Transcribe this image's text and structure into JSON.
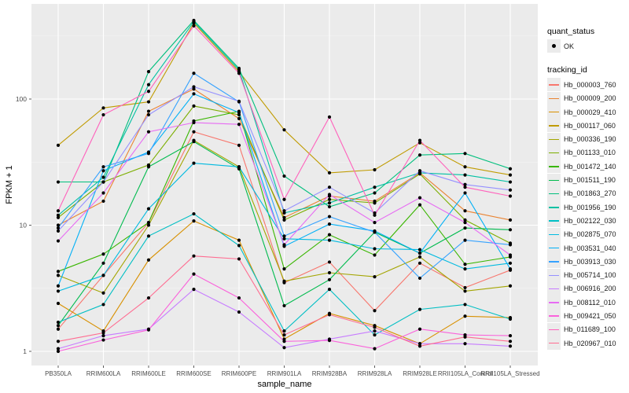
{
  "chart_data": {
    "type": "line",
    "title": "",
    "xlabel": "sample_name",
    "ylabel": "FPKM + 1",
    "yscale": "log10",
    "ylim": [
      0.8,
      560
    ],
    "yticks": [
      1,
      10,
      100
    ],
    "ytick_labels": [
      "1",
      "10",
      "100"
    ],
    "grid": true,
    "legend_position": "right",
    "categories": [
      "PB350LA",
      "RRIM600LA",
      "RRIM600LE",
      "RRIM600SE",
      "RRIM600PE",
      "RRIM901LA",
      "RRIM928BA",
      "RRIM928LA",
      "RRIM928LE",
      "RRII105LA_Control",
      "RRII105LA_Stressed"
    ],
    "point_legend": {
      "title": "quant_status",
      "entries": [
        "OK"
      ]
    },
    "line_legend_title": "tracking_id",
    "series": [
      {
        "name": "Hb_000003_760",
        "color": "#F8766D",
        "values": [
          1.5,
          4.0,
          10.5,
          55.0,
          43.0,
          3.5,
          5.1,
          2.1,
          5.0,
          3.2,
          4.4
        ]
      },
      {
        "name": "Hb_000009_200",
        "color": "#EA8331",
        "values": [
          10.0,
          15.5,
          80.0,
          120.0,
          70.0,
          11.5,
          17.0,
          15.5,
          26.0,
          13.0,
          11.0
        ]
      },
      {
        "name": "Hb_000029_410",
        "color": "#D89000",
        "values": [
          2.4,
          1.45,
          5.3,
          10.8,
          7.6,
          1.25,
          2.0,
          1.6,
          1.15,
          1.9,
          1.85
        ]
      },
      {
        "name": "Hb_000117_060",
        "color": "#C09B00",
        "values": [
          43.0,
          85.0,
          95.0,
          400.0,
          165.0,
          57.0,
          26.0,
          27.5,
          45.0,
          29.0,
          25.0
        ]
      },
      {
        "name": "Hb_000336_190",
        "color": "#A3A500",
        "values": [
          4.0,
          2.9,
          10.0,
          47.0,
          29.0,
          3.6,
          4.2,
          3.9,
          5.6,
          3.0,
          3.3
        ]
      },
      {
        "name": "Hb_001133_010",
        "color": "#7CAE00",
        "values": [
          11.5,
          22.0,
          30.0,
          88.0,
          75.0,
          11.0,
          16.0,
          15.0,
          25.5,
          11.0,
          7.2
        ]
      },
      {
        "name": "Hb_001472_140",
        "color": "#39B600",
        "values": [
          4.3,
          5.9,
          10.5,
          67.0,
          80.0,
          4.5,
          8.4,
          5.8,
          14.5,
          4.9,
          5.6
        ]
      },
      {
        "name": "Hb_001511_190",
        "color": "#00BB4E",
        "values": [
          1.6,
          5.0,
          29.0,
          46.0,
          28.0,
          2.3,
          3.7,
          8.8,
          6.0,
          9.5,
          9.2
        ]
      },
      {
        "name": "Hb_001863_270",
        "color": "#00BF7D",
        "values": [
          22.0,
          22.0,
          165.0,
          420.0,
          175.0,
          24.5,
          14.0,
          18.0,
          36.0,
          37.0,
          28.0
        ]
      },
      {
        "name": "Hb_001956_190",
        "color": "#00C1A3",
        "values": [
          12.0,
          24.0,
          130.0,
          410.0,
          170.0,
          12.5,
          15.0,
          20.0,
          26.0,
          25.0,
          22.0
        ]
      },
      {
        "name": "Hb_002122_030",
        "color": "#00BFC4",
        "values": [
          1.7,
          2.35,
          8.2,
          12.3,
          6.9,
          1.45,
          3.1,
          1.35,
          2.15,
          2.35,
          1.8
        ]
      },
      {
        "name": "Hb_002875_070",
        "color": "#00BAE0",
        "values": [
          3.0,
          4.0,
          13.5,
          31.0,
          29.0,
          7.8,
          7.6,
          6.5,
          6.4,
          4.5,
          5.0
        ]
      },
      {
        "name": "Hb_003531_040",
        "color": "#00B0F6",
        "values": [
          3.3,
          27.0,
          38.0,
          110.0,
          78.0,
          6.8,
          10.2,
          9.0,
          6.0,
          18.0,
          4.5
        ]
      },
      {
        "name": "Hb_003913_030",
        "color": "#35A2FF",
        "values": [
          9.5,
          29.0,
          37.0,
          160.0,
          95.0,
          8.2,
          11.7,
          8.8,
          3.8,
          7.6,
          7.0
        ]
      },
      {
        "name": "Hb_005714_100",
        "color": "#9590FF",
        "values": [
          9.0,
          22.0,
          75.0,
          125.0,
          96.0,
          13.0,
          20.0,
          12.5,
          27.0,
          21.0,
          19.0
        ]
      },
      {
        "name": "Hb_006916_200",
        "color": "#C77CFF",
        "values": [
          1.05,
          1.33,
          1.5,
          3.1,
          2.05,
          1.07,
          1.25,
          1.45,
          1.15,
          1.15,
          1.1
        ]
      },
      {
        "name": "Hb_008112_010",
        "color": "#E76BF3",
        "values": [
          7.5,
          18.0,
          55.0,
          65.0,
          63.0,
          7.0,
          17.5,
          10.5,
          16.5,
          10.5,
          5.8
        ]
      },
      {
        "name": "Hb_009421_050",
        "color": "#FA62DB",
        "values": [
          1.0,
          1.23,
          1.48,
          4.1,
          2.65,
          1.2,
          1.22,
          1.05,
          1.5,
          1.35,
          1.33
        ]
      },
      {
        "name": "Hb_011689_100",
        "color": "#FF62BC",
        "values": [
          13.0,
          75.0,
          115.0,
          380.0,
          160.0,
          16.0,
          72.0,
          12.0,
          47.0,
          20.0,
          17.0
        ]
      },
      {
        "name": "Hb_020967_010",
        "color": "#FF6C91",
        "values": [
          1.2,
          1.4,
          2.65,
          5.7,
          5.4,
          1.35,
          1.95,
          1.55,
          1.1,
          1.3,
          1.2
        ]
      }
    ]
  }
}
